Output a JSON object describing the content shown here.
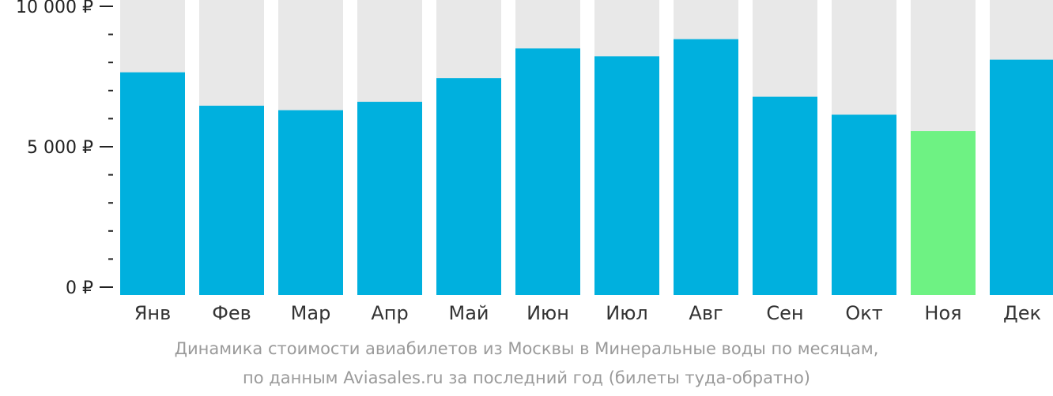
{
  "chart_data": {
    "type": "bar",
    "categories": [
      "Янв",
      "Фев",
      "Мар",
      "Апр",
      "Май",
      "Июн",
      "Июл",
      "Авг",
      "Сен",
      "Окт",
      "Ноя",
      "Дек"
    ],
    "values": [
      7650,
      6460,
      6300,
      6600,
      7440,
      8500,
      8220,
      8830,
      6780,
      6140,
      5560,
      8100
    ],
    "highlight_index": 10,
    "ylim": [
      0,
      10000
    ],
    "yticks": [
      {
        "value": 0,
        "label": "0 ₽"
      },
      {
        "value": 5000,
        "label": "5 000 ₽"
      },
      {
        "value": 10000,
        "label": "10 000 ₽"
      }
    ],
    "minor_tick_step": 1000,
    "colors": {
      "bar": "#00b0de",
      "highlight": "#6ef283",
      "background_bar": "#e8e8e8",
      "axis": "#222222"
    },
    "caption_line1": "Динамика стоимости авиабилетов из Москвы в Минеральные воды по месяцам,",
    "caption_line2": "по данным Aviasales.ru за последний год (билеты туда-обратно)"
  }
}
